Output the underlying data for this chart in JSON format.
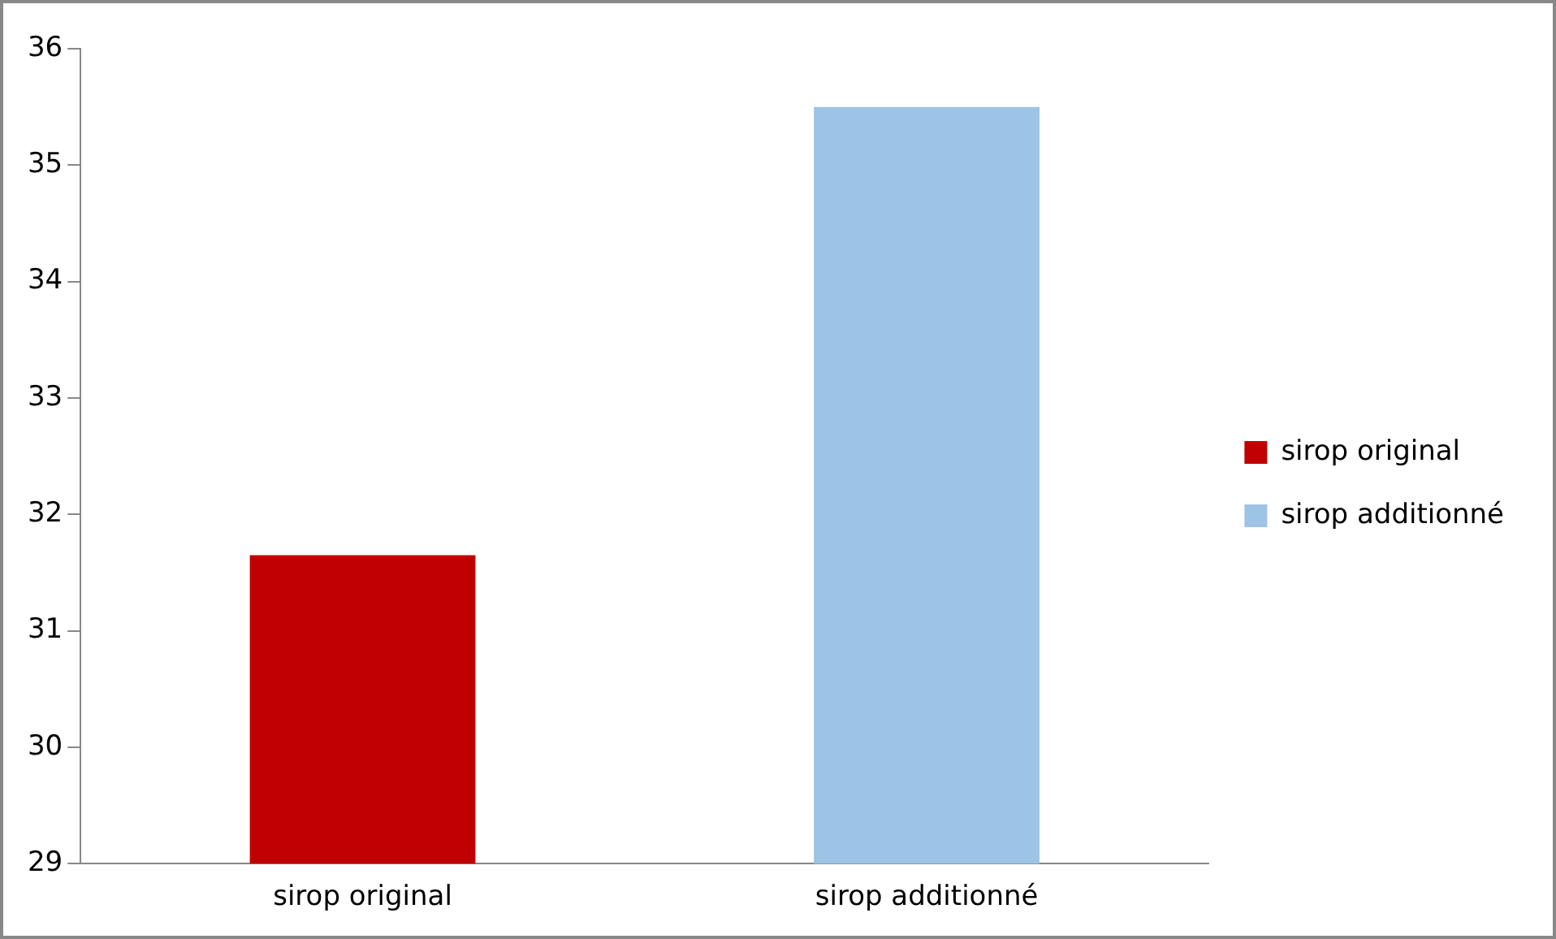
{
  "chart_data": {
    "type": "bar",
    "categories": [
      "sirop original",
      "sirop additionné"
    ],
    "series": [
      {
        "name": "sirop original",
        "color": "#c00000",
        "values": [
          31.65,
          null
        ]
      },
      {
        "name": "sirop additionné",
        "color": "#9dc3e6",
        "values": [
          null,
          35.5
        ]
      }
    ],
    "ylim": [
      29,
      36
    ],
    "yticks": [
      29,
      30,
      31,
      32,
      33,
      34,
      35,
      36
    ],
    "grid": false,
    "legend": "right"
  }
}
